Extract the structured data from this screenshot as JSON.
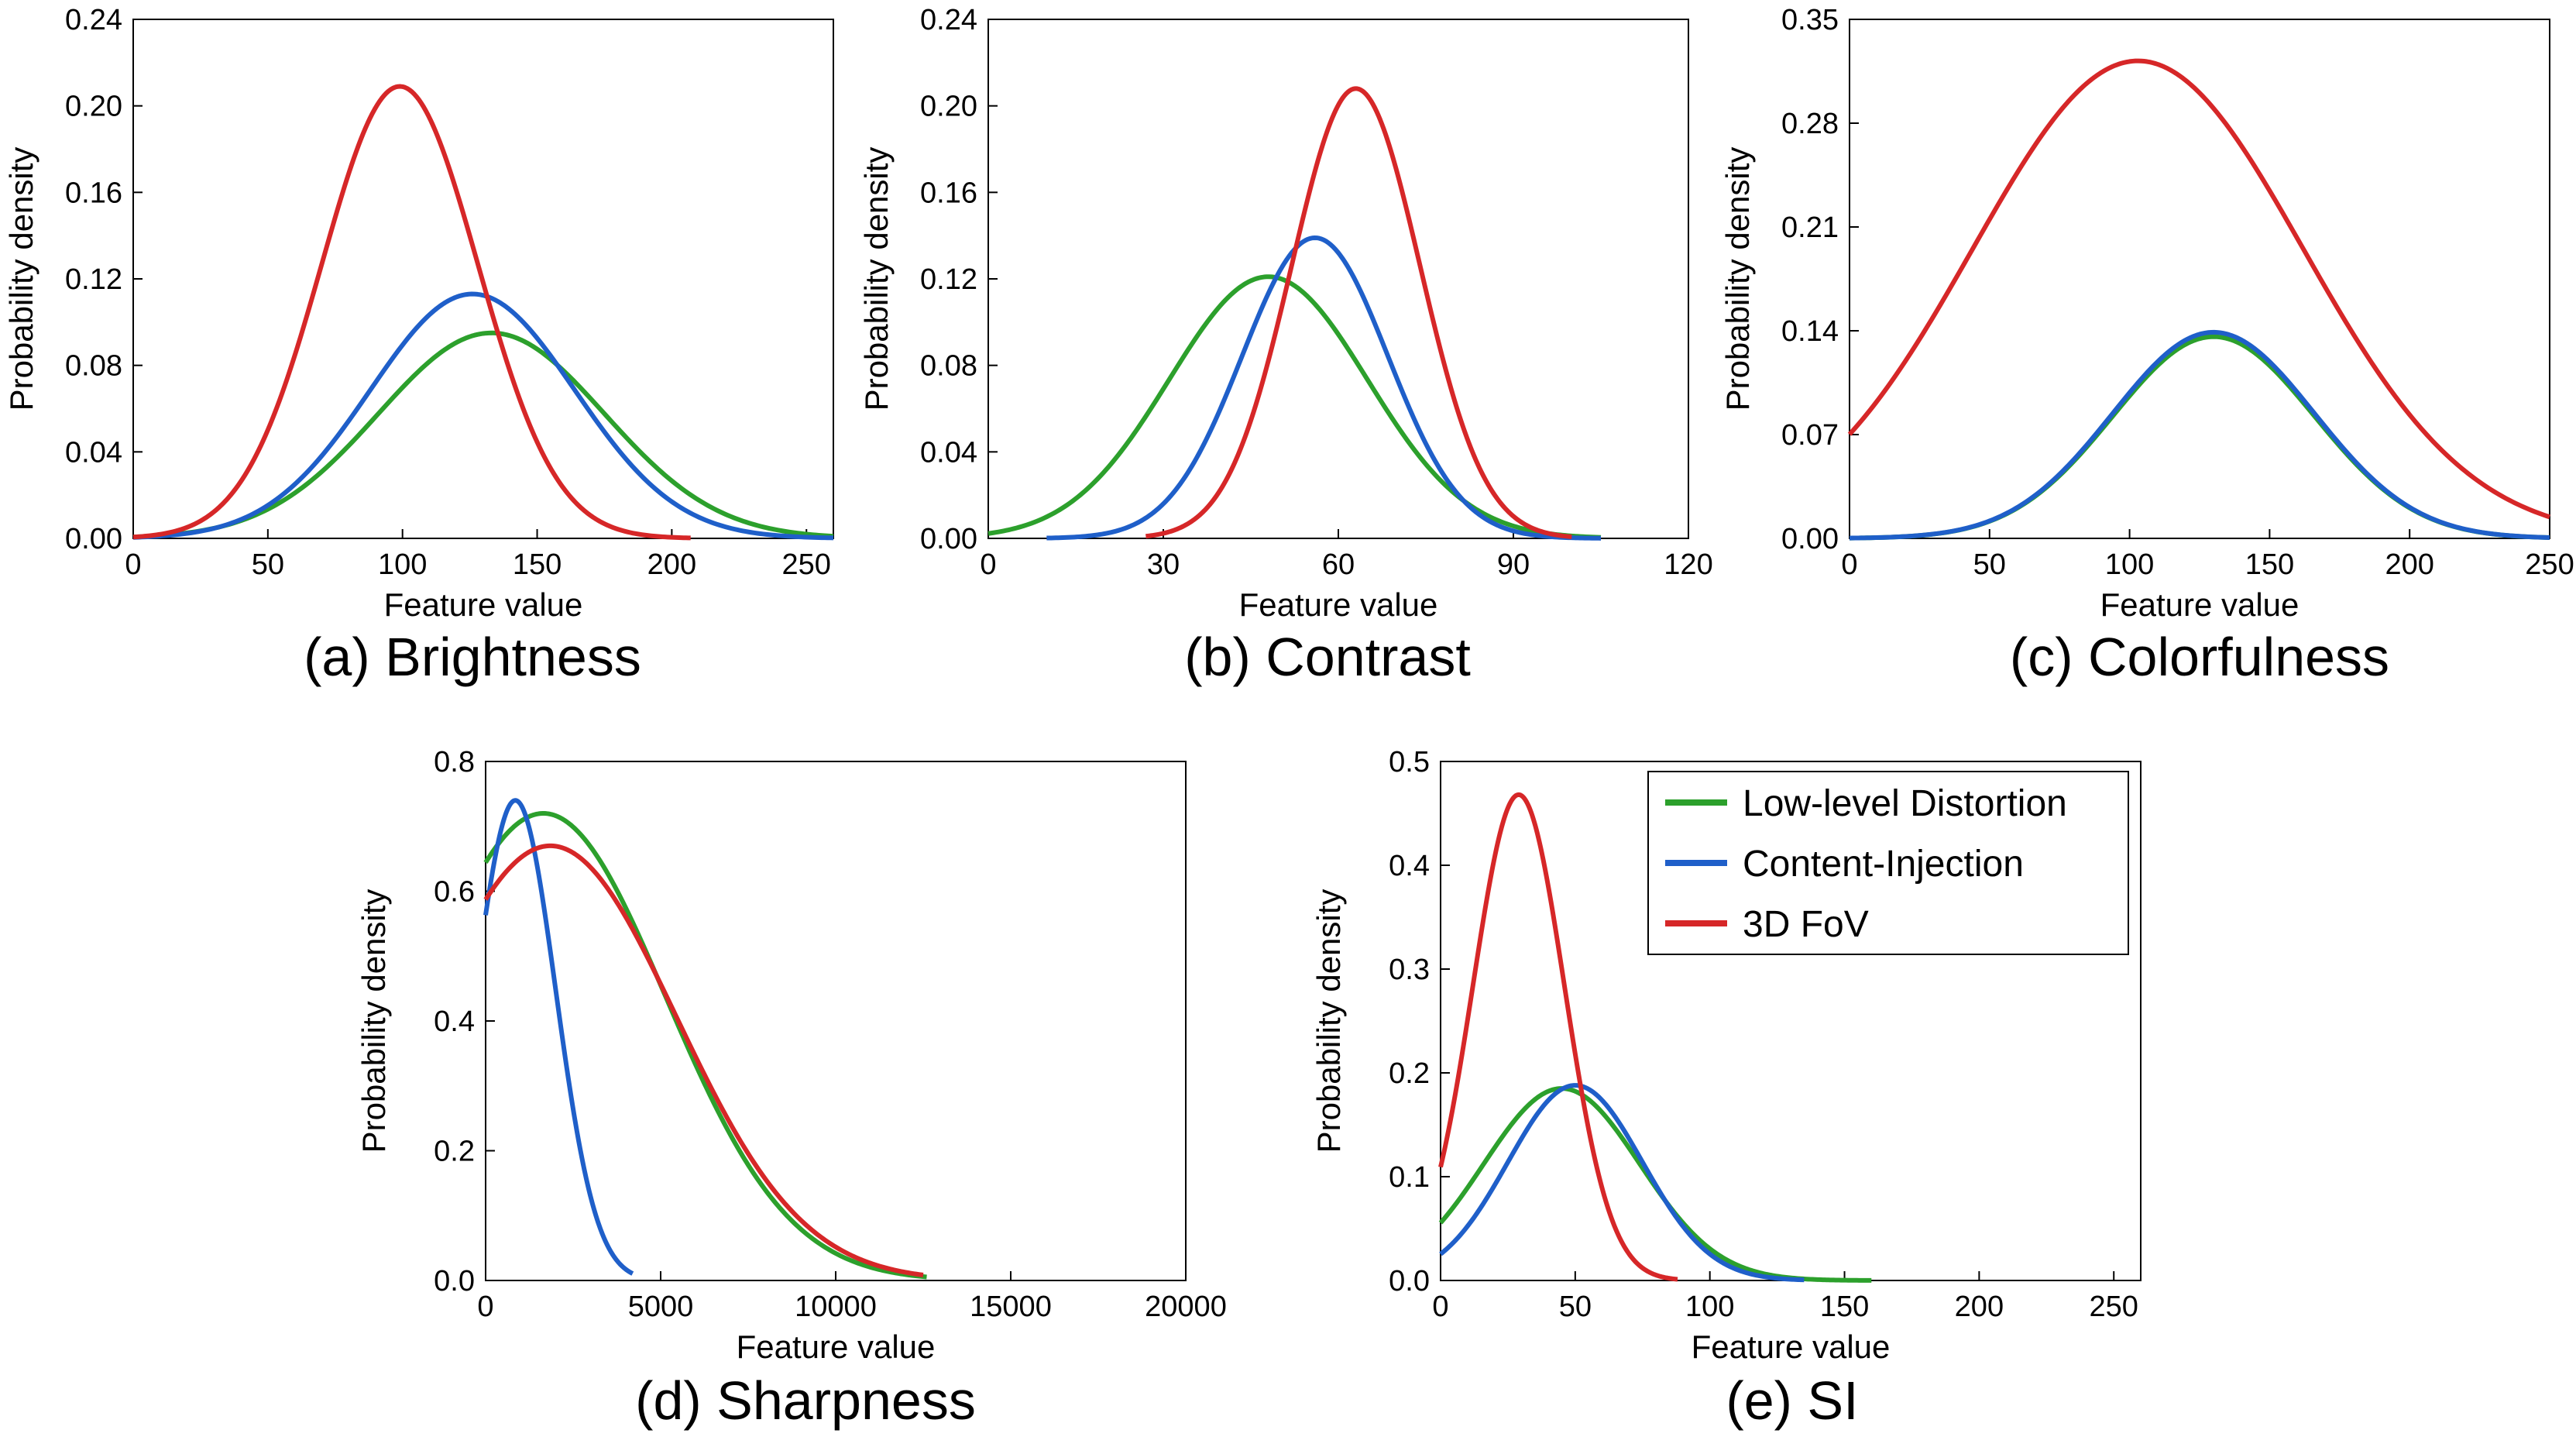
{
  "figure": {
    "legend": [
      {
        "label": "Low-level Distortion",
        "color": "#2ca02c"
      },
      {
        "label": "Content-Injection",
        "color": "#1f5fc9"
      },
      {
        "label": "3D FoV",
        "color": "#d62728"
      }
    ]
  },
  "chart_data": [
    {
      "type": "line",
      "caption": "(a) Brightness",
      "xlabel": "Feature value",
      "ylabel": "Probability density",
      "xlim": [
        0,
        260
      ],
      "ylim": [
        0,
        0.24
      ],
      "xticks": [
        "0",
        "50",
        "100",
        "150",
        "200",
        "250"
      ],
      "xtick_values": [
        0,
        50,
        100,
        150,
        200,
        250
      ],
      "yticks": [
        "0.00",
        "0.04",
        "0.08",
        "0.12",
        "0.16",
        "0.20",
        "0.24"
      ],
      "ytick_values": [
        0,
        0.04,
        0.08,
        0.12,
        0.16,
        0.2,
        0.24
      ],
      "series": [
        {
          "name": "Low-level Distortion",
          "color": "#2ca02c",
          "mu": 133,
          "sigma": 42,
          "peak": 0.095,
          "x_range": [
            0,
            260
          ]
        },
        {
          "name": "Content-Injection",
          "color": "#1f5fc9",
          "mu": 126,
          "sigma": 38,
          "peak": 0.113,
          "x_range": [
            0,
            260
          ]
        },
        {
          "name": "3D FoV",
          "color": "#d62728",
          "mu": 99,
          "sigma": 29,
          "peak": 0.209,
          "x_range": [
            0,
            207
          ]
        }
      ]
    },
    {
      "type": "line",
      "caption": "(b) Contrast",
      "xlabel": "Feature value",
      "ylabel": "Probability density",
      "xlim": [
        0,
        120
      ],
      "ylim": [
        0,
        0.24
      ],
      "xticks": [
        "0",
        "30",
        "60",
        "90",
        "120"
      ],
      "xtick_values": [
        0,
        30,
        60,
        90,
        120
      ],
      "yticks": [
        "0.00",
        "0.04",
        "0.08",
        "0.12",
        "0.16",
        "0.20",
        "0.24"
      ],
      "ytick_values": [
        0,
        0.04,
        0.08,
        0.12,
        0.16,
        0.2,
        0.24
      ],
      "series": [
        {
          "name": "Low-level Distortion",
          "color": "#2ca02c",
          "mu": 48,
          "sigma": 17,
          "peak": 0.121,
          "x_range": [
            0,
            105
          ]
        },
        {
          "name": "Content-Injection",
          "color": "#1f5fc9",
          "mu": 56,
          "sigma": 12.5,
          "peak": 0.139,
          "x_range": [
            10,
            105
          ]
        },
        {
          "name": "3D FoV",
          "color": "#d62728",
          "mu": 63,
          "sigma": 11,
          "peak": 0.208,
          "x_range": [
            27,
            100
          ]
        }
      ]
    },
    {
      "type": "line",
      "caption": "(c) Colorfulness",
      "xlabel": "Feature value",
      "ylabel": "Probability density",
      "xlim": [
        0,
        250
      ],
      "ylim": [
        0,
        0.35
      ],
      "xticks": [
        "0",
        "50",
        "100",
        "150",
        "200",
        "250"
      ],
      "xtick_values": [
        0,
        50,
        100,
        150,
        200,
        250
      ],
      "yticks": [
        "0.00",
        "0.07",
        "0.14",
        "0.21",
        "0.28",
        "0.35"
      ],
      "ytick_values": [
        0,
        0.07,
        0.14,
        0.21,
        0.28,
        0.35
      ],
      "series": [
        {
          "name": "Low-level Distortion",
          "color": "#2ca02c",
          "mu": 130,
          "sigma": 36,
          "peak": 0.136,
          "x_range": [
            0,
            250
          ]
        },
        {
          "name": "Content-Injection",
          "color": "#1f5fc9",
          "mu": 130,
          "sigma": 36,
          "peak": 0.139,
          "x_range": [
            0,
            250
          ]
        },
        {
          "name": "3D FoV",
          "color": "#d62728",
          "mu": 103,
          "sigma": 59,
          "peak": 0.322,
          "x_range": [
            0,
            250
          ]
        }
      ]
    },
    {
      "type": "line",
      "caption": "(d) Sharpness",
      "xlabel": "Feature value",
      "ylabel": "Probability density",
      "xlim": [
        0,
        20000
      ],
      "ylim": [
        0,
        0.8
      ],
      "xticks": [
        "0",
        "5000",
        "10000",
        "15000",
        "20000"
      ],
      "xtick_values": [
        0,
        5000,
        10000,
        15000,
        20000
      ],
      "yticks": [
        "0.0",
        "0.2",
        "0.4",
        "0.6",
        "0.8"
      ],
      "ytick_values": [
        0,
        0.2,
        0.4,
        0.6,
        0.8
      ],
      "series": [
        {
          "name": "Low-level Distortion",
          "color": "#2ca02c",
          "mu": 1650,
          "sigma": 3500,
          "peak": 0.72,
          "x_range": [
            0,
            12600
          ]
        },
        {
          "name": "Content-Injection",
          "color": "#1f5fc9",
          "mu": 850,
          "sigma": 1150,
          "peak": 0.74,
          "x_range": [
            0,
            4200
          ]
        },
        {
          "name": "3D FoV",
          "color": "#d62728",
          "mu": 1850,
          "sigma": 3600,
          "peak": 0.67,
          "x_range": [
            0,
            12500
          ]
        }
      ]
    },
    {
      "type": "line",
      "caption": "(e) SI",
      "xlabel": "Feature value",
      "ylabel": "Probability density",
      "xlim": [
        0,
        260
      ],
      "ylim": [
        0,
        0.5
      ],
      "xticks": [
        "0",
        "50",
        "100",
        "150",
        "200",
        "250"
      ],
      "xtick_values": [
        0,
        50,
        100,
        150,
        200,
        250
      ],
      "yticks": [
        "0.0",
        "0.1",
        "0.2",
        "0.3",
        "0.4",
        "0.5"
      ],
      "ytick_values": [
        0,
        0.1,
        0.2,
        0.3,
        0.4,
        0.5
      ],
      "legend_position": "top-right",
      "series": [
        {
          "name": "Low-level Distortion",
          "color": "#2ca02c",
          "mu": 45,
          "sigma": 29,
          "peak": 0.185,
          "x_range": [
            0,
            160
          ]
        },
        {
          "name": "Content-Injection",
          "color": "#1f5fc9",
          "mu": 50,
          "sigma": 25,
          "peak": 0.188,
          "x_range": [
            0,
            135
          ]
        },
        {
          "name": "3D FoV",
          "color": "#d62728",
          "mu": 29,
          "sigma": 17,
          "peak": 0.468,
          "x_range": [
            0,
            88
          ]
        }
      ]
    }
  ]
}
